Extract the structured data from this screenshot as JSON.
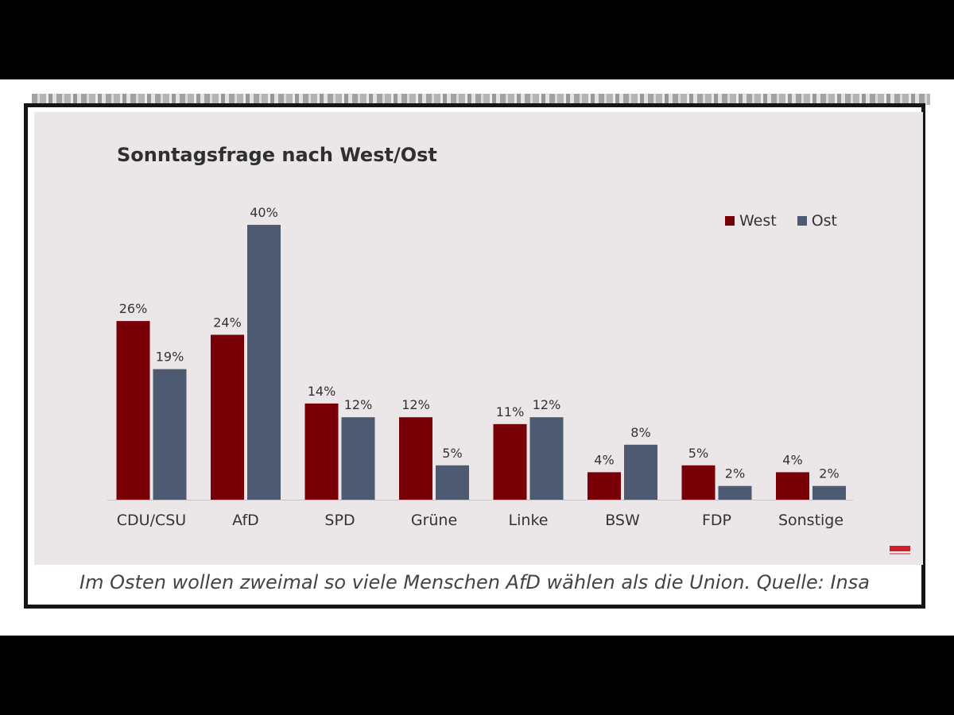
{
  "chart_data": {
    "type": "bar",
    "title": "Sonntagsfrage nach West/Ost",
    "categories": [
      "CDU/CSU",
      "AfD",
      "SPD",
      "Grüne",
      "Linke",
      "BSW",
      "FDP",
      "Sonstige"
    ],
    "series": [
      {
        "name": "West",
        "color": "#7a0008",
        "values": [
          26,
          24,
          14,
          12,
          11,
          4,
          5,
          4
        ],
        "labels": [
          "26%",
          "24%",
          "14%",
          "12%",
          "11%",
          "4%",
          "5%",
          "4%"
        ]
      },
      {
        "name": "Ost",
        "color": "#4d5a72",
        "values": [
          19,
          40,
          12,
          5,
          12,
          8,
          2,
          2
        ],
        "labels": [
          "19%",
          "40%",
          "12%",
          "5%",
          "12%",
          "8%",
          "2%",
          "2%"
        ]
      }
    ],
    "ylim": [
      0,
      40
    ],
    "xlabel": "",
    "ylabel": "",
    "grid": false,
    "legend": "top-right"
  },
  "logo": {
    "text": "INSA",
    "color": "#d21f2b"
  },
  "caption": "Im Osten wollen zweimal so viele Menschen AfD wählen als die Union. Quelle: Insa"
}
